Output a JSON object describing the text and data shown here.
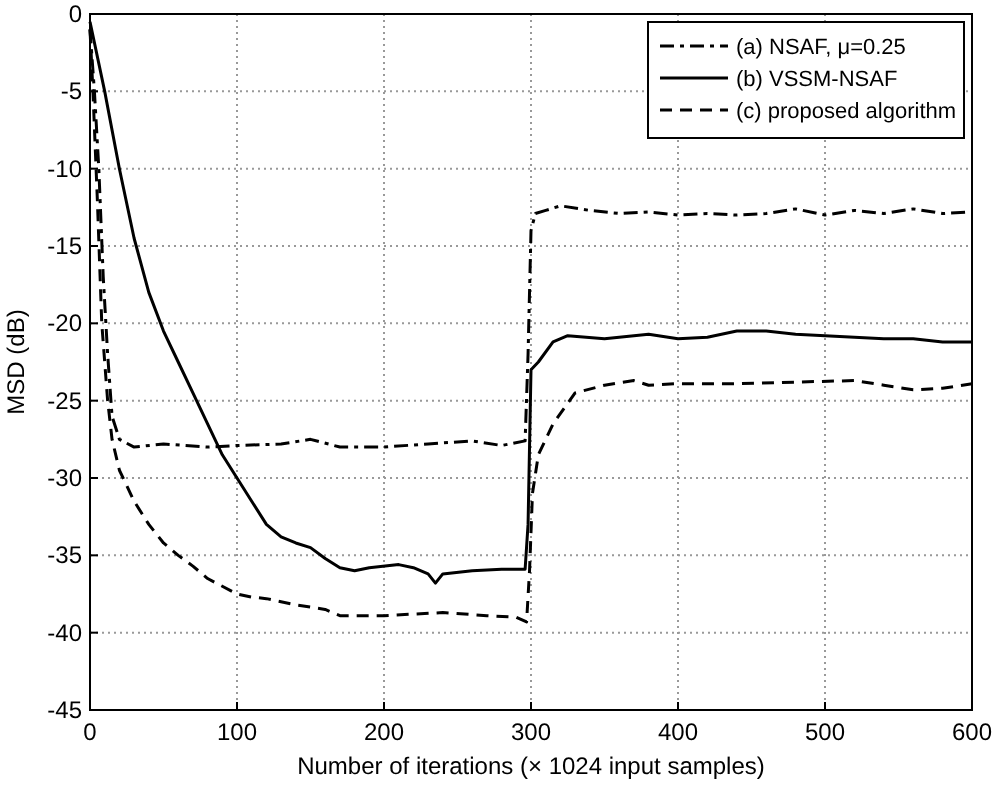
{
  "chart_data": {
    "type": "line",
    "xlabel": "Number of iterations (× 1024 input samples)",
    "ylabel": "MSD (dB)",
    "xlim": [
      0,
      600
    ],
    "xticks": [
      0,
      100,
      200,
      300,
      400,
      500,
      600
    ],
    "ylim": [
      -45,
      0
    ],
    "yticks": [
      0,
      -5,
      -10,
      -15,
      -20,
      -25,
      -30,
      -35,
      -40,
      -45
    ],
    "grid": true,
    "legend": "top right",
    "series": [
      {
        "name": "(a) NSAF, μ=0.25",
        "color": "#000000",
        "line_style": "dashdot",
        "x": [
          0,
          3,
          6,
          9,
          12,
          15,
          20,
          30,
          50,
          80,
          100,
          130,
          150,
          170,
          200,
          230,
          260,
          280,
          296,
          298,
          300,
          303,
          310,
          320,
          340,
          360,
          380,
          400,
          420,
          440,
          460,
          480,
          500,
          520,
          540,
          560,
          580,
          600
        ],
        "values": [
          -1,
          -5,
          -10,
          -17,
          -22,
          -26,
          -27.5,
          -28,
          -27.8,
          -28,
          -27.9,
          -27.8,
          -27.5,
          -28,
          -28,
          -27.8,
          -27.6,
          -27.9,
          -27.6,
          -22,
          -14,
          -12.9,
          -12.7,
          -12.4,
          -12.7,
          -12.9,
          -12.8,
          -13,
          -12.9,
          -13,
          -12.9,
          -12.6,
          -13,
          -12.7,
          -12.9,
          -12.6,
          -12.9,
          -12.8
        ]
      },
      {
        "name": "(b) VSSM-NSAF",
        "color": "#000000",
        "line_style": "solid",
        "x": [
          0,
          10,
          20,
          30,
          40,
          50,
          60,
          70,
          80,
          90,
          100,
          110,
          120,
          130,
          140,
          150,
          160,
          170,
          180,
          190,
          210,
          220,
          230,
          235,
          240,
          260,
          280,
          296,
          298,
          300,
          305,
          315,
          325,
          350,
          380,
          400,
          420,
          440,
          460,
          480,
          500,
          540,
          560,
          580,
          600
        ],
        "values": [
          -0.5,
          -5,
          -10,
          -14.5,
          -18,
          -20.5,
          -22.5,
          -24.5,
          -26.5,
          -28.5,
          -30,
          -31.5,
          -33,
          -33.8,
          -34.2,
          -34.5,
          -35.2,
          -35.8,
          -36,
          -35.8,
          -35.6,
          -35.8,
          -36.2,
          -36.8,
          -36.2,
          -36,
          -35.9,
          -35.9,
          -33,
          -23,
          -22.5,
          -21.2,
          -20.8,
          -21,
          -20.7,
          -21,
          -20.9,
          -20.5,
          -20.5,
          -20.7,
          -20.8,
          -21,
          -21,
          -21.2,
          -21.2
        ]
      },
      {
        "name": "(c) proposed algorithm",
        "color": "#000000",
        "line_style": "dashed",
        "x": [
          0,
          2,
          5,
          8,
          12,
          15,
          20,
          30,
          40,
          50,
          60,
          70,
          80,
          90,
          100,
          110,
          120,
          140,
          160,
          170,
          200,
          240,
          270,
          290,
          297,
          299,
          301,
          305,
          315,
          330,
          350,
          370,
          380,
          400,
          440,
          480,
          520,
          540,
          560,
          580,
          600
        ],
        "values": [
          -1,
          -5,
          -12,
          -20,
          -25,
          -27.5,
          -29.5,
          -31.5,
          -33,
          -34.2,
          -35,
          -35.7,
          -36.5,
          -37,
          -37.5,
          -37.7,
          -37.8,
          -38.2,
          -38.5,
          -38.9,
          -38.9,
          -38.7,
          -38.9,
          -39,
          -39.3,
          -36,
          -31,
          -28.5,
          -26.5,
          -24.5,
          -24,
          -23.7,
          -24,
          -23.9,
          -23.9,
          -23.8,
          -23.7,
          -24,
          -24.3,
          -24.2,
          -23.9
        ]
      }
    ]
  }
}
